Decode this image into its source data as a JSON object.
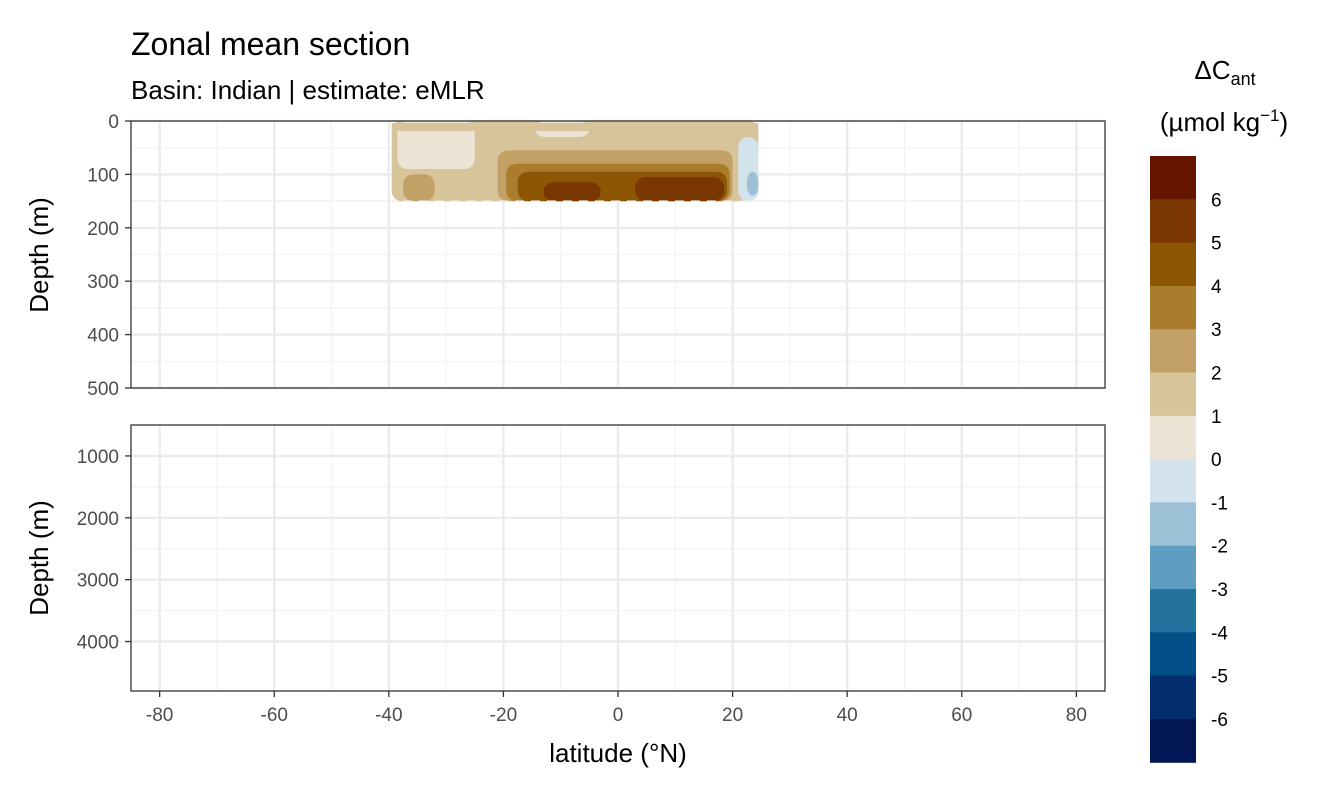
{
  "chart_data": {
    "type": "heatmap",
    "title": "Zonal mean section",
    "subtitle": "Basin: Indian | estimate: eMLR",
    "xlabel": "latitude (°N)",
    "ylabel": "Depth (m)",
    "x_ticks": [
      -80,
      -60,
      -40,
      -20,
      0,
      20,
      40,
      60,
      80
    ],
    "xlim": [
      -85,
      85
    ],
    "panels": [
      {
        "ylim": [
          0,
          500
        ],
        "y_ticks": [
          0,
          100,
          200,
          300,
          400,
          500
        ],
        "reversed": true
      },
      {
        "ylim": [
          500,
          4800
        ],
        "y_ticks": [
          1000,
          2000,
          3000,
          4000
        ],
        "reversed": true
      }
    ],
    "mixed_layer_depth_line": 150,
    "legend": {
      "title_main": "ΔC",
      "title_sub": "ant",
      "title_units": "(µmol kg",
      "title_exp": "−1",
      "title_close": ")",
      "labels": [
        "6",
        "5",
        "4",
        "3",
        "2",
        "1",
        "0",
        "-1",
        "-2",
        "-3",
        "-4",
        "-5",
        "-6"
      ],
      "colors": [
        "#651401",
        "#7a3603",
        "#8c5605",
        "#a97d2c",
        "#c3a066",
        "#d8c49a",
        "#ebe4d4",
        "#d3e3eb",
        "#9cc1d7",
        "#5d9dc0",
        "#24739f",
        "#024e86",
        "#022d6e",
        "#021555"
      ]
    },
    "layers": [
      {
        "level": 1,
        "color": "#d8c49a",
        "lat": [
          -39.5,
          24.5
        ],
        "depth": [
          0,
          150
        ]
      },
      {
        "level": 0,
        "color": "#ebe4d4",
        "lat": [
          -38.5,
          -25
        ],
        "depth": [
          0,
          90
        ]
      },
      {
        "level": 0,
        "color": "#ebe4d4",
        "lat": [
          -14.5,
          -5
        ],
        "depth": [
          0,
          30
        ]
      },
      {
        "level": 2,
        "color": "#c3a066",
        "lat": [
          -37.5,
          -32
        ],
        "depth": [
          100,
          150
        ]
      },
      {
        "level": 2,
        "color": "#c3a066",
        "lat": [
          -21,
          20
        ],
        "depth": [
          55,
          150
        ]
      },
      {
        "level": 3,
        "color": "#a97d2c",
        "lat": [
          -19.5,
          19.5
        ],
        "depth": [
          80,
          150
        ]
      },
      {
        "level": 4,
        "color": "#8c5605",
        "lat": [
          -17.5,
          19
        ],
        "depth": [
          95,
          150
        ]
      },
      {
        "level": 5,
        "color": "#7a3603",
        "lat": [
          -13,
          -3
        ],
        "depth": [
          115,
          150
        ]
      },
      {
        "level": 5,
        "color": "#7a3603",
        "lat": [
          3,
          18.5
        ],
        "depth": [
          105,
          150
        ]
      },
      {
        "level": -1,
        "color": "#d3e3eb",
        "lat": [
          21,
          24.5
        ],
        "depth": [
          30,
          150
        ]
      },
      {
        "level": -2,
        "color": "#9cc1d7",
        "lat": [
          22.5,
          24.5
        ],
        "depth": [
          95,
          140
        ]
      }
    ]
  }
}
